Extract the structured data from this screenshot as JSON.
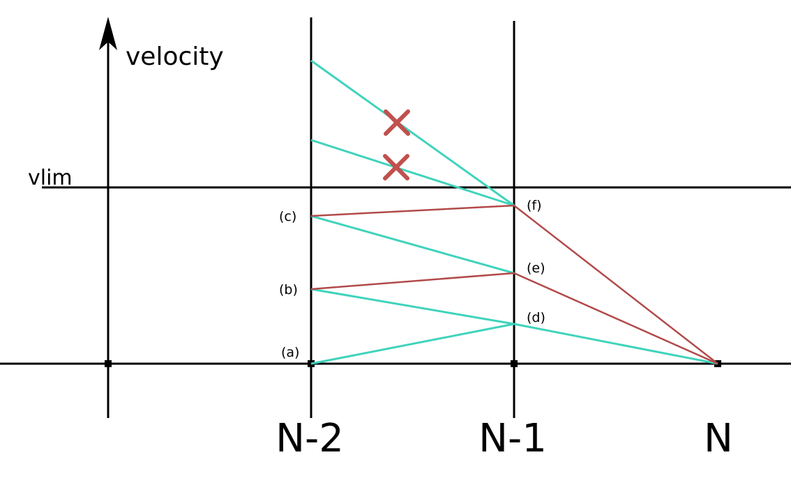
{
  "axis": {
    "y_label": "velocity",
    "limit_label": "vlim"
  },
  "x_ticks": [
    "N-2",
    "N-1",
    "N"
  ],
  "points": {
    "a": "(a)",
    "b": "(b)",
    "c": "(c)",
    "d": "(d)",
    "e": "(e)",
    "f": "(f)"
  },
  "colors": {
    "axis": "#000000",
    "feasible": "#3fd3bc",
    "chosen": "#b24a4a",
    "reject": "#c0504d"
  },
  "rejected_marks": [
    "×",
    "×"
  ]
}
